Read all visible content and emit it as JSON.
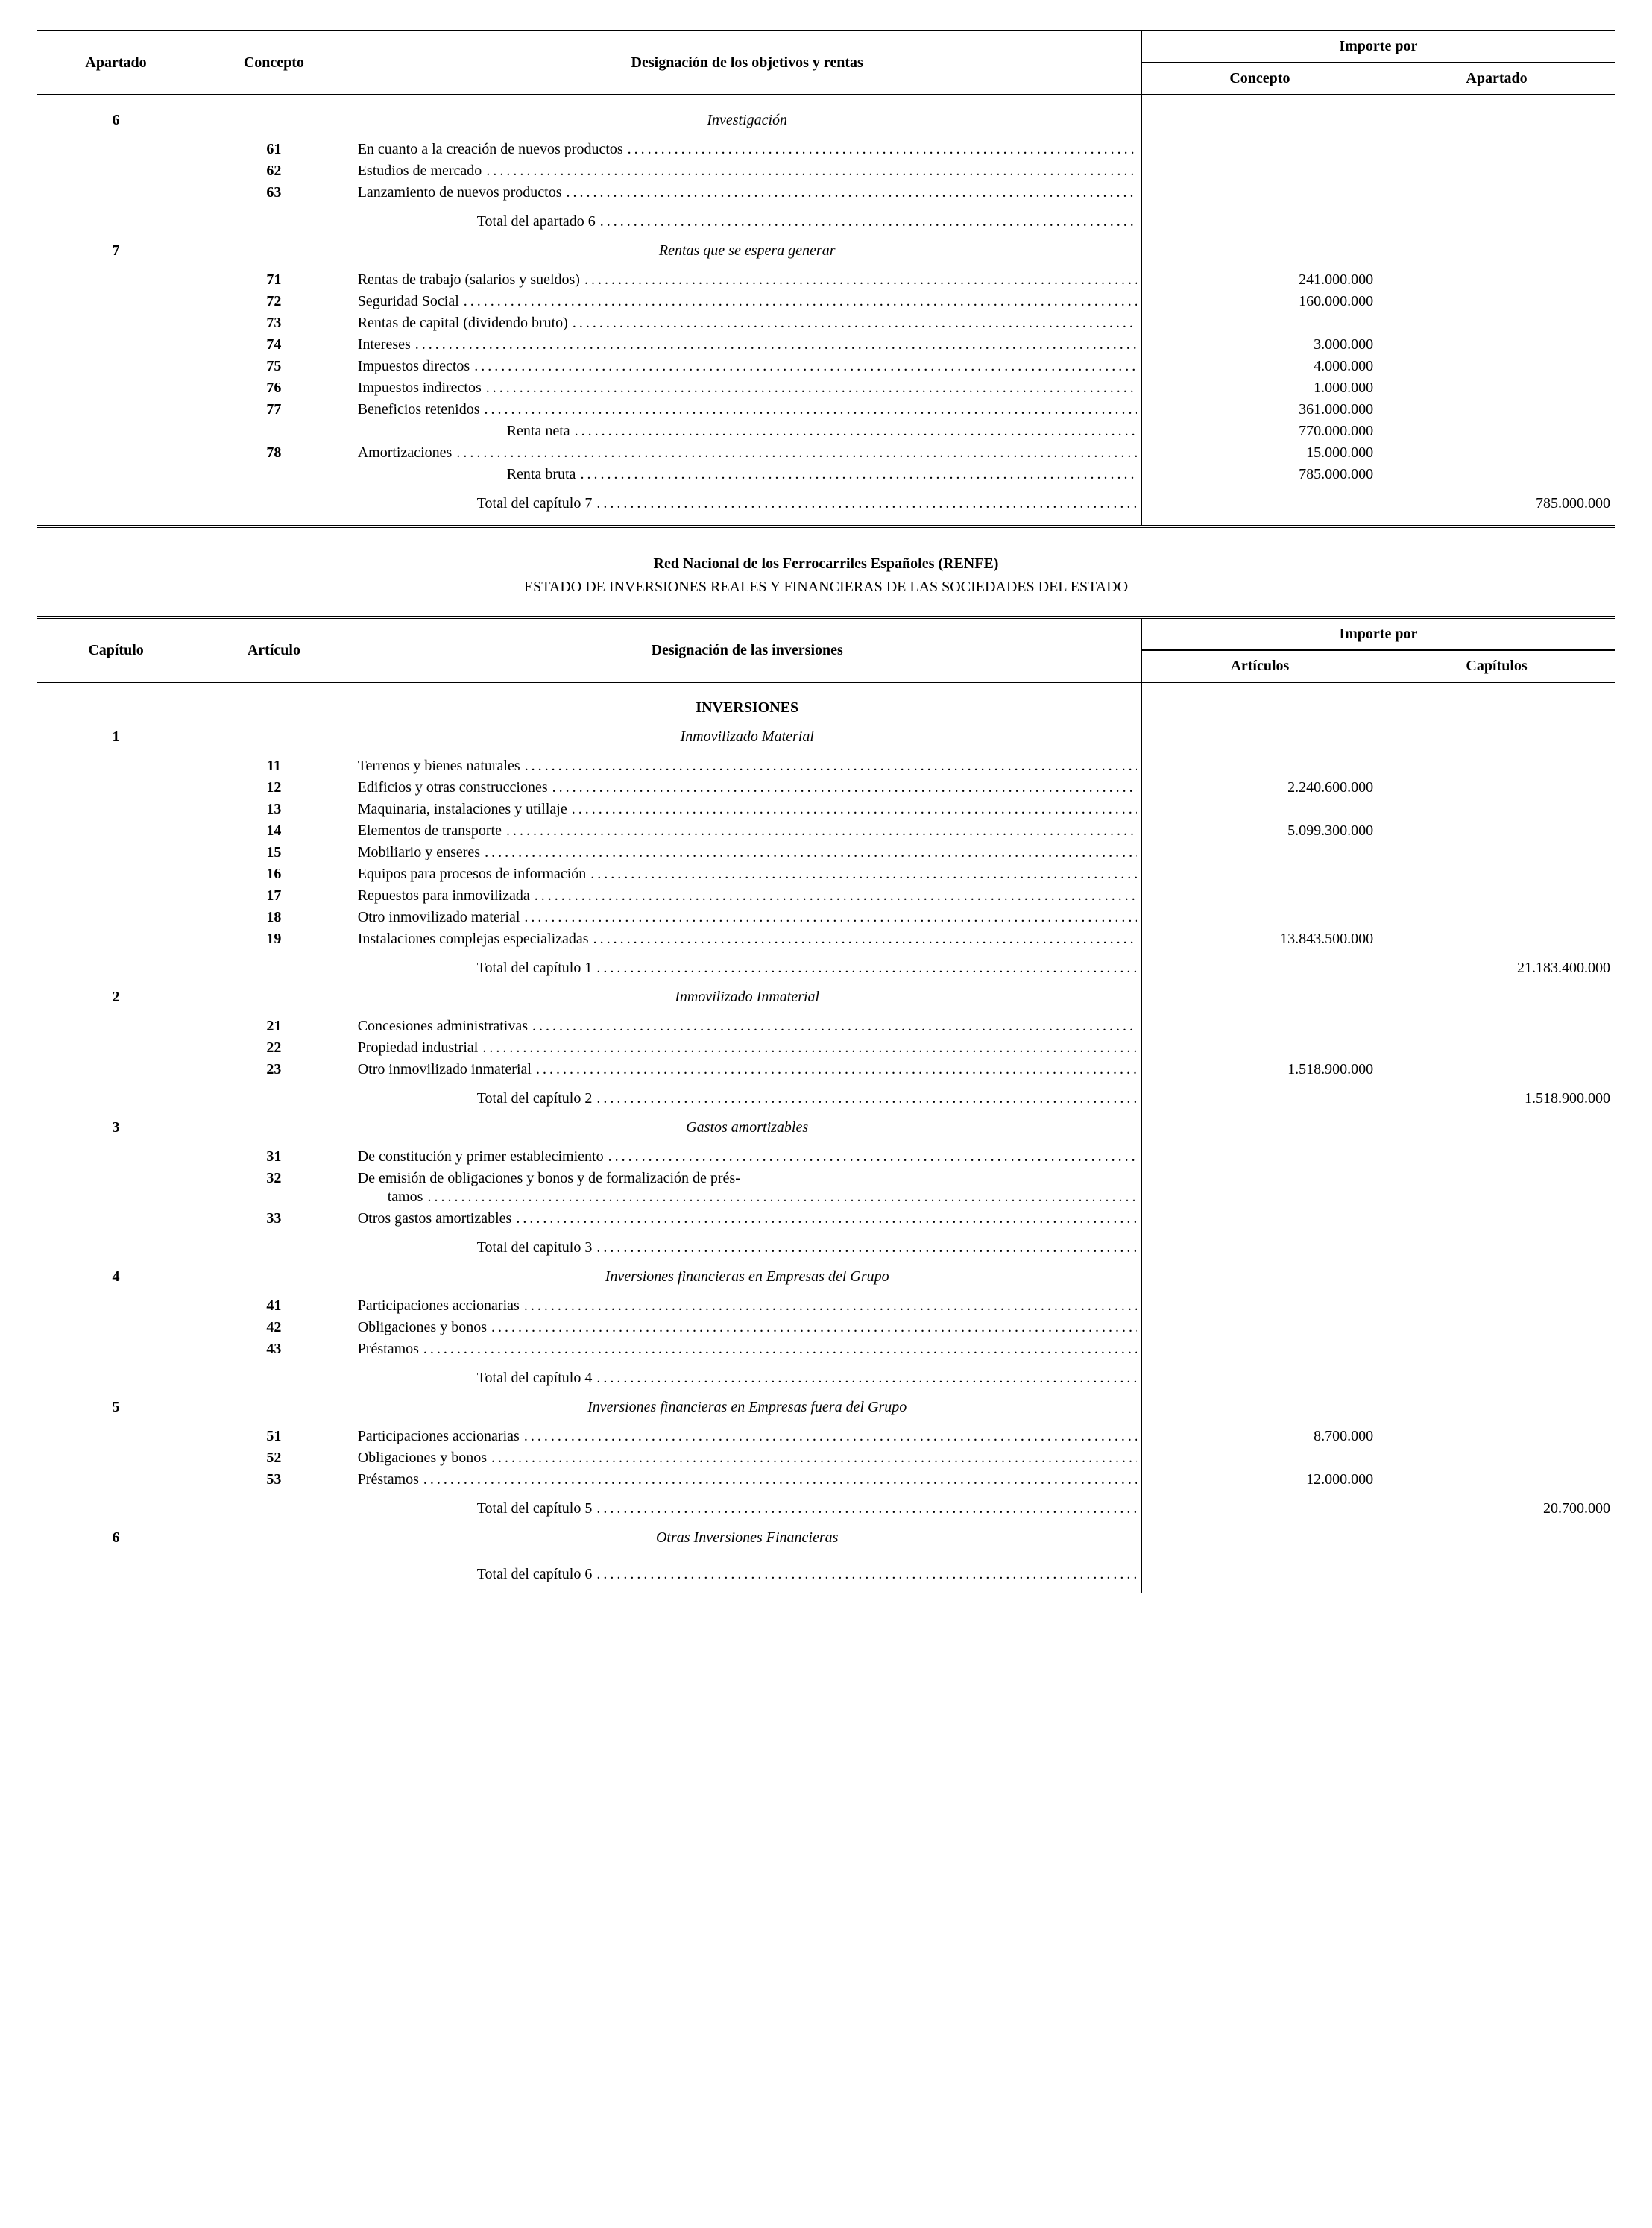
{
  "table1": {
    "headers": {
      "apartado": "Apartado",
      "concepto": "Concepto",
      "designacion": "Designación de los objetivos y rentas",
      "importe_por": "Importe por",
      "imp_concepto": "Concepto",
      "imp_apartado": "Apartado"
    },
    "sections": [
      {
        "apartado": "6",
        "heading": "Investigación",
        "rows": [
          {
            "concepto": "61",
            "label": "En cuanto a la creación de nuevos productos",
            "v1": "",
            "v2": ""
          },
          {
            "concepto": "62",
            "label": "Estudios de mercado",
            "v1": "",
            "v2": ""
          },
          {
            "concepto": "63",
            "label": "Lanzamiento de nuevos productos",
            "v1": "",
            "v2": ""
          }
        ],
        "total_label": "Total del apartado 6",
        "total_v1": "",
        "total_v2": ""
      },
      {
        "apartado": "7",
        "heading": "Rentas que se espera generar",
        "rows": [
          {
            "concepto": "71",
            "label": "Rentas de trabajo (salarios y sueldos)",
            "v1": "241.000.000",
            "v2": ""
          },
          {
            "concepto": "72",
            "label": "Seguridad Social",
            "v1": "160.000.000",
            "v2": ""
          },
          {
            "concepto": "73",
            "label": "Rentas de capital (dividendo bruto)",
            "v1": "",
            "v2": ""
          },
          {
            "concepto": "74",
            "label": "Intereses",
            "v1": "3.000.000",
            "v2": ""
          },
          {
            "concepto": "75",
            "label": "Impuestos directos",
            "v1": "4.000.000",
            "v2": ""
          },
          {
            "concepto": "76",
            "label": "Impuestos indirectos",
            "v1": "1.000.000",
            "v2": ""
          },
          {
            "concepto": "77",
            "label": "Beneficios retenidos",
            "v1": "361.000.000",
            "v2": ""
          },
          {
            "concepto": "",
            "label": "Renta neta",
            "indent": "sub",
            "v1": "770.000.000",
            "v2": ""
          },
          {
            "concepto": "78",
            "label": "Amortizaciones",
            "v1": "15.000.000",
            "v2": ""
          },
          {
            "concepto": "",
            "label": "Renta bruta",
            "indent": "sub",
            "v1": "785.000.000",
            "v2": ""
          }
        ],
        "total_label": "Total del capítulo 7",
        "total_v1": "",
        "total_v2": "785.000.000"
      }
    ]
  },
  "mid_title": "Red Nacional de los Ferrocarriles Españoles (RENFE)",
  "mid_sub": "ESTADO DE INVERSIONES REALES Y FINANCIERAS DE LAS SOCIEDADES DEL ESTADO",
  "table2": {
    "headers": {
      "capitulo": "Capítulo",
      "articulo": "Artículo",
      "designacion": "Designación de las inversiones",
      "importe_por": "Importe por",
      "imp_articulos": "Artículos",
      "imp_capitulos": "Capítulos"
    },
    "supertitle": "INVERSIONES",
    "sections": [
      {
        "capitulo": "1",
        "heading": "Inmovilizado Material",
        "rows": [
          {
            "articulo": "11",
            "label": "Terrenos y bienes naturales",
            "v1": "",
            "v2": ""
          },
          {
            "articulo": "12",
            "label": "Edificios y otras construcciones",
            "v1": "2.240.600.000",
            "v2": ""
          },
          {
            "articulo": "13",
            "label": "Maquinaria, instalaciones y utillaje",
            "v1": "",
            "v2": ""
          },
          {
            "articulo": "14",
            "label": "Elementos de transporte",
            "v1": "5.099.300.000",
            "v2": ""
          },
          {
            "articulo": "15",
            "label": "Mobiliario y enseres",
            "v1": "",
            "v2": ""
          },
          {
            "articulo": "16",
            "label": "Equipos para procesos de información",
            "v1": "",
            "v2": ""
          },
          {
            "articulo": "17",
            "label": "Repuestos para inmovilizada",
            "v1": "",
            "v2": ""
          },
          {
            "articulo": "18",
            "label": "Otro inmovilizado material",
            "v1": "",
            "v2": ""
          },
          {
            "articulo": "19",
            "label": "Instalaciones complejas especializadas",
            "v1": "13.843.500.000",
            "v2": ""
          }
        ],
        "total_label": "Total del capítulo 1",
        "total_v1": "",
        "total_v2": "21.183.400.000"
      },
      {
        "capitulo": "2",
        "heading": "Inmovilizado Inmaterial",
        "rows": [
          {
            "articulo": "21",
            "label": "Concesiones administrativas",
            "v1": "",
            "v2": ""
          },
          {
            "articulo": "22",
            "label": "Propiedad industrial",
            "v1": "",
            "v2": ""
          },
          {
            "articulo": "23",
            "label": "Otro inmovilizado inmaterial",
            "v1": "1.518.900.000",
            "v2": ""
          }
        ],
        "total_label": "Total del capítulo 2",
        "total_v1": "",
        "total_v2": "1.518.900.000"
      },
      {
        "capitulo": "3",
        "heading": "Gastos amortizables",
        "rows": [
          {
            "articulo": "31",
            "label": "De constitución y primer establecimiento",
            "v1": "",
            "v2": ""
          },
          {
            "articulo": "32",
            "label": "De emisión de obligaciones y bonos y de formalización de préstamos",
            "v1": "",
            "v2": "",
            "wrap": true
          },
          {
            "articulo": "33",
            "label": "Otros gastos amortizables",
            "v1": "",
            "v2": ""
          }
        ],
        "total_label": "Total del capítulo 3",
        "total_v1": "",
        "total_v2": ""
      },
      {
        "capitulo": "4",
        "heading": "Inversiones financieras en Empresas del Grupo",
        "rows": [
          {
            "articulo": "41",
            "label": "Participaciones accionarias",
            "v1": "",
            "v2": ""
          },
          {
            "articulo": "42",
            "label": "Obligaciones y bonos",
            "v1": "",
            "v2": ""
          },
          {
            "articulo": "43",
            "label": "Préstamos",
            "v1": "",
            "v2": ""
          }
        ],
        "total_label": "Total del capítulo 4",
        "total_v1": "",
        "total_v2": ""
      },
      {
        "capitulo": "5",
        "heading": "Inversiones financieras en Empresas fuera del Grupo",
        "rows": [
          {
            "articulo": "51",
            "label": "Participaciones accionarias",
            "v1": "8.700.000",
            "v2": ""
          },
          {
            "articulo": "52",
            "label": "Obligaciones y bonos",
            "v1": "",
            "v2": ""
          },
          {
            "articulo": "53",
            "label": "Préstamos",
            "v1": "12.000.000",
            "v2": ""
          }
        ],
        "total_label": "Total del capítulo 5",
        "total_v1": "",
        "total_v2": "20.700.000"
      },
      {
        "capitulo": "6",
        "heading": "Otras Inversiones Financieras",
        "rows": [],
        "total_label": "Total del capítulo 6",
        "total_v1": "",
        "total_v2": ""
      }
    ]
  }
}
